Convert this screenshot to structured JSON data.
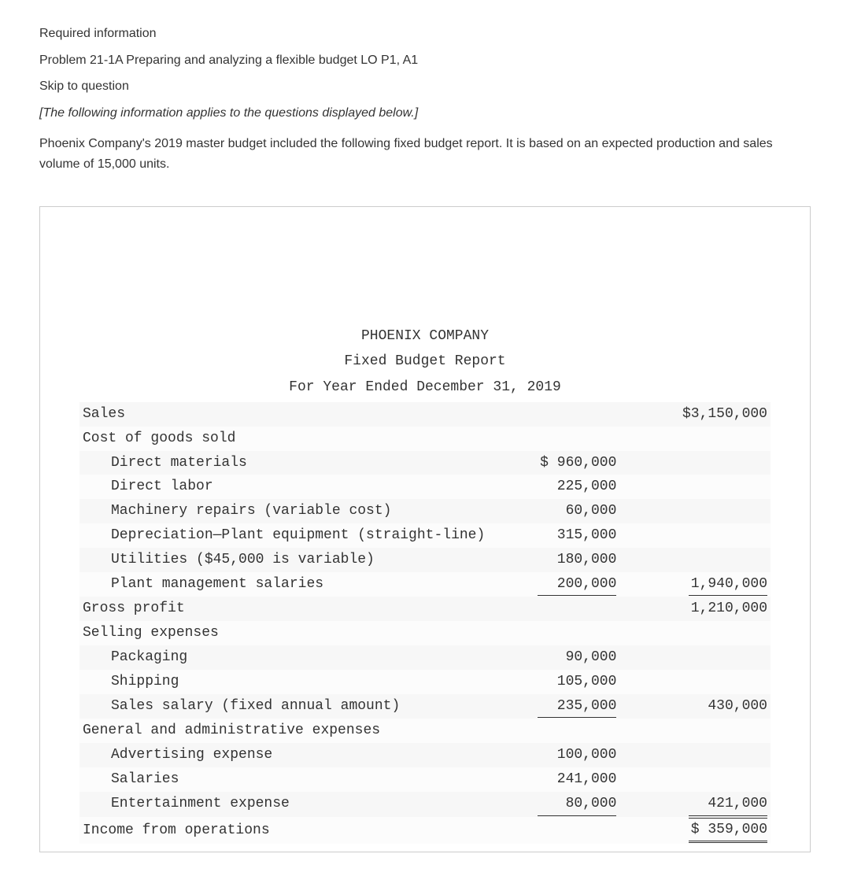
{
  "intro": {
    "required": "Required information",
    "problem": "Problem 21-1A Preparing and analyzing a flexible budget LO P1, A1",
    "skip": "Skip to question",
    "note": "[The following information applies to the questions displayed below.]",
    "desc": "Phoenix Company's 2019 master budget included the following fixed budget report. It is based on an expected production and sales volume of 15,000 units."
  },
  "report": {
    "company": "PHOENIX COMPANY",
    "title": "Fixed Budget Report",
    "period": "For Year Ended December 31, 2019",
    "font": "Courier New",
    "font_size": 18,
    "stripe_odd": "#f7f7f7",
    "stripe_even": "#fcfcfc",
    "rows": [
      {
        "label": "Sales",
        "indent": 0,
        "amt1": "",
        "amt2": "$3,150,000",
        "ul1": false,
        "ul2": false
      },
      {
        "label": "Cost of goods sold",
        "indent": 0,
        "amt1": "",
        "amt2": "",
        "ul1": false,
        "ul2": false
      },
      {
        "label": "Direct materials",
        "indent": 1,
        "amt1": "$ 960,000",
        "amt2": "",
        "ul1": false,
        "ul2": false
      },
      {
        "label": "Direct labor",
        "indent": 1,
        "amt1": "225,000",
        "amt2": "",
        "ul1": false,
        "ul2": false
      },
      {
        "label": "Machinery repairs (variable cost)",
        "indent": 1,
        "amt1": "60,000",
        "amt2": "",
        "ul1": false,
        "ul2": false
      },
      {
        "label": "Depreciation—Plant equipment (straight-line)",
        "indent": 1,
        "amt1": "315,000",
        "amt2": "",
        "ul1": false,
        "ul2": false
      },
      {
        "label": "Utilities ($45,000 is variable)",
        "indent": 1,
        "amt1": "180,000",
        "amt2": "",
        "ul1": false,
        "ul2": false
      },
      {
        "label": "Plant management salaries",
        "indent": 1,
        "amt1": "200,000",
        "amt2": "1,940,000",
        "ul1": true,
        "ul2": true
      },
      {
        "label": "Gross profit",
        "indent": 0,
        "amt1": "",
        "amt2": "1,210,000",
        "ul1": false,
        "ul2": false
      },
      {
        "label": "Selling expenses",
        "indent": 0,
        "amt1": "",
        "amt2": "",
        "ul1": false,
        "ul2": false
      },
      {
        "label": "Packaging",
        "indent": 1,
        "amt1": "90,000",
        "amt2": "",
        "ul1": false,
        "ul2": false
      },
      {
        "label": "Shipping",
        "indent": 1,
        "amt1": "105,000",
        "amt2": "",
        "ul1": false,
        "ul2": false
      },
      {
        "label": "Sales salary (fixed annual amount)",
        "indent": 1,
        "amt1": "235,000",
        "amt2": "430,000",
        "ul1": true,
        "ul2": false
      },
      {
        "label": "General and administrative expenses",
        "indent": 0,
        "amt1": "",
        "amt2": "",
        "ul1": false,
        "ul2": false
      },
      {
        "label": "Advertising expense",
        "indent": 1,
        "amt1": "100,000",
        "amt2": "",
        "ul1": false,
        "ul2": false
      },
      {
        "label": "Salaries",
        "indent": 1,
        "amt1": "241,000",
        "amt2": "",
        "ul1": false,
        "ul2": false
      },
      {
        "label": "Entertainment expense",
        "indent": 1,
        "amt1": "80,000",
        "amt2": "421,000",
        "ul1": true,
        "ul2": true
      },
      {
        "label": "Income from operations",
        "indent": 0,
        "amt1": "",
        "amt2": "$  359,000",
        "ul1": false,
        "ul2": false,
        "dbl2": true
      }
    ]
  },
  "colors": {
    "text": "#333333",
    "border": "#cccccc",
    "background": "#ffffff"
  }
}
